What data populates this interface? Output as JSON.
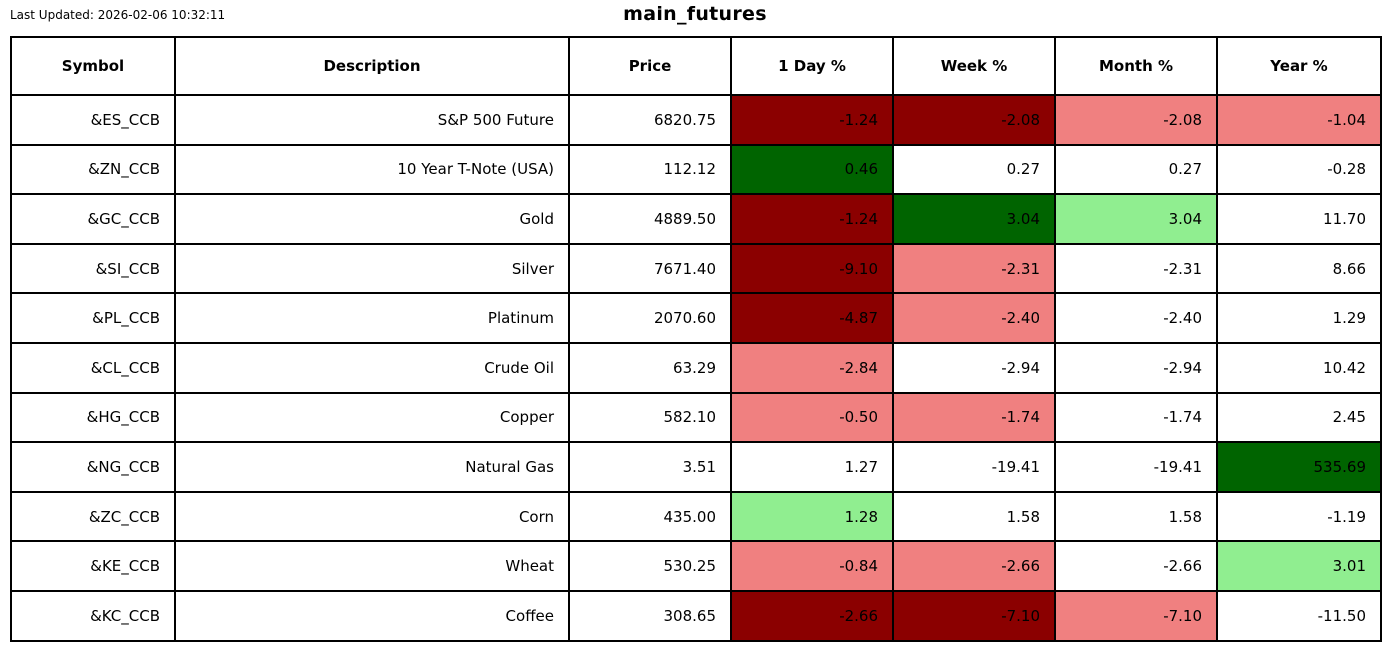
{
  "meta": {
    "last_updated": "Last Updated: 2026-02-06 10:32:11",
    "title": "main_futures"
  },
  "colors": {
    "darkred": "#8b0000",
    "lightred": "#f08080",
    "darkgreen": "#006400",
    "lightgreen": "#90ee90",
    "white": "#ffffff",
    "border": "#000000",
    "text": "#000000"
  },
  "chart_data": {
    "type": "table",
    "title": "main_futures",
    "last_updated": "Last Updated: 2026-02-06 10:32:11",
    "columns": [
      "Symbol",
      "Description",
      "Price",
      "1 Day %",
      "Week %",
      "Month %",
      "Year %"
    ],
    "rows": [
      {
        "symbol": "&ES_CCB",
        "description": "S&P 500 Future",
        "price": "6820.75",
        "day": {
          "value": "-1.24",
          "bg": "darkred"
        },
        "week": {
          "value": "-2.08",
          "bg": "darkred"
        },
        "month": {
          "value": "-2.08",
          "bg": "lightred"
        },
        "year": {
          "value": "-1.04",
          "bg": "lightred"
        }
      },
      {
        "symbol": "&ZN_CCB",
        "description": "10 Year T-Note (USA)",
        "price": "112.12",
        "day": {
          "value": "0.46",
          "bg": "darkgreen"
        },
        "week": {
          "value": "0.27",
          "bg": "white"
        },
        "month": {
          "value": "0.27",
          "bg": "white"
        },
        "year": {
          "value": "-0.28",
          "bg": "white"
        }
      },
      {
        "symbol": "&GC_CCB",
        "description": "Gold",
        "price": "4889.50",
        "day": {
          "value": "-1.24",
          "bg": "darkred"
        },
        "week": {
          "value": "3.04",
          "bg": "darkgreen"
        },
        "month": {
          "value": "3.04",
          "bg": "lightgreen"
        },
        "year": {
          "value": "11.70",
          "bg": "white"
        }
      },
      {
        "symbol": "&SI_CCB",
        "description": "Silver",
        "price": "7671.40",
        "day": {
          "value": "-9.10",
          "bg": "darkred"
        },
        "week": {
          "value": "-2.31",
          "bg": "lightred"
        },
        "month": {
          "value": "-2.31",
          "bg": "white"
        },
        "year": {
          "value": "8.66",
          "bg": "white"
        }
      },
      {
        "symbol": "&PL_CCB",
        "description": "Platinum",
        "price": "2070.60",
        "day": {
          "value": "-4.87",
          "bg": "darkred"
        },
        "week": {
          "value": "-2.40",
          "bg": "lightred"
        },
        "month": {
          "value": "-2.40",
          "bg": "white"
        },
        "year": {
          "value": "1.29",
          "bg": "white"
        }
      },
      {
        "symbol": "&CL_CCB",
        "description": "Crude Oil",
        "price": "63.29",
        "day": {
          "value": "-2.84",
          "bg": "lightred"
        },
        "week": {
          "value": "-2.94",
          "bg": "white"
        },
        "month": {
          "value": "-2.94",
          "bg": "white"
        },
        "year": {
          "value": "10.42",
          "bg": "white"
        }
      },
      {
        "symbol": "&HG_CCB",
        "description": "Copper",
        "price": "582.10",
        "day": {
          "value": "-0.50",
          "bg": "lightred"
        },
        "week": {
          "value": "-1.74",
          "bg": "lightred"
        },
        "month": {
          "value": "-1.74",
          "bg": "white"
        },
        "year": {
          "value": "2.45",
          "bg": "white"
        }
      },
      {
        "symbol": "&NG_CCB",
        "description": "Natural Gas",
        "price": "3.51",
        "day": {
          "value": "1.27",
          "bg": "white"
        },
        "week": {
          "value": "-19.41",
          "bg": "white"
        },
        "month": {
          "value": "-19.41",
          "bg": "white"
        },
        "year": {
          "value": "535.69",
          "bg": "darkgreen"
        }
      },
      {
        "symbol": "&ZC_CCB",
        "description": "Corn",
        "price": "435.00",
        "day": {
          "value": "1.28",
          "bg": "lightgreen"
        },
        "week": {
          "value": "1.58",
          "bg": "white"
        },
        "month": {
          "value": "1.58",
          "bg": "white"
        },
        "year": {
          "value": "-1.19",
          "bg": "white"
        }
      },
      {
        "symbol": "&KE_CCB",
        "description": "Wheat",
        "price": "530.25",
        "day": {
          "value": "-0.84",
          "bg": "lightred"
        },
        "week": {
          "value": "-2.66",
          "bg": "lightred"
        },
        "month": {
          "value": "-2.66",
          "bg": "white"
        },
        "year": {
          "value": "3.01",
          "bg": "lightgreen"
        }
      },
      {
        "symbol": "&KC_CCB",
        "description": "Coffee",
        "price": "308.65",
        "day": {
          "value": "-2.66",
          "bg": "darkred"
        },
        "week": {
          "value": "-7.10",
          "bg": "darkred"
        },
        "month": {
          "value": "-7.10",
          "bg": "lightred"
        },
        "year": {
          "value": "-11.50",
          "bg": "white"
        }
      }
    ]
  }
}
